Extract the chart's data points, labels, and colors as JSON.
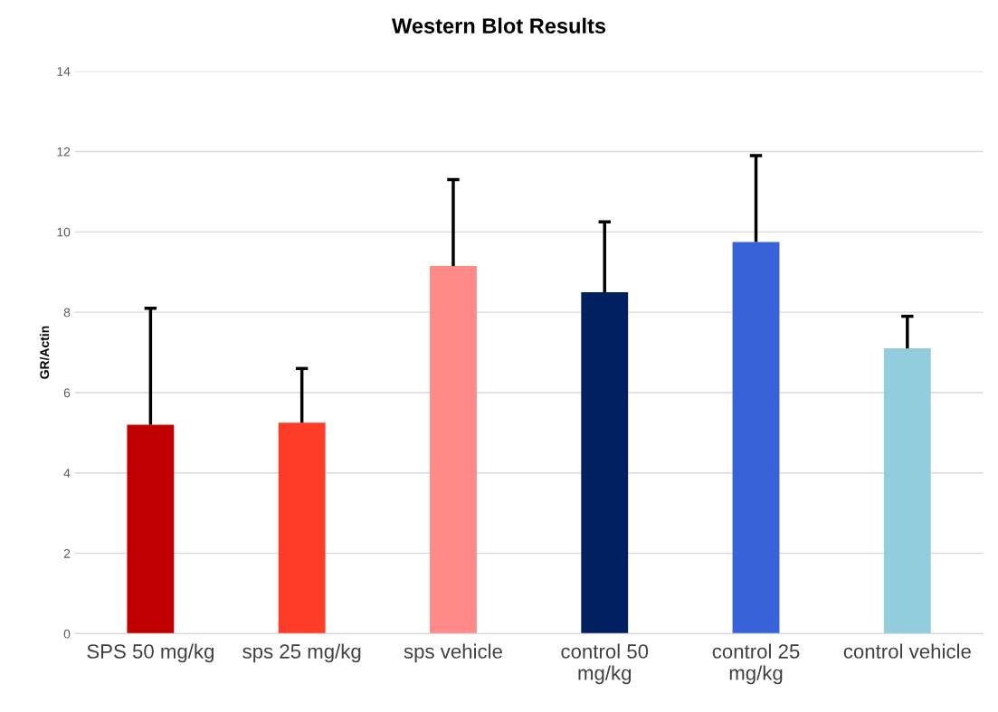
{
  "chart_data": {
    "type": "bar",
    "title": "Western Blot Results",
    "ylabel": "GR/Actin",
    "categories": [
      "SPS 50 mg/kg",
      "sps 25 mg/kg",
      "sps vehicle",
      "control 50\nmg/kg",
      "control 25\nmg/kg",
      "control vehicle"
    ],
    "values": [
      5.2,
      5.25,
      9.15,
      8.5,
      9.75,
      7.1
    ],
    "colors": [
      "#c00000",
      "#ff3c28",
      "#ff8a87",
      "#002060",
      "#3762d8",
      "#92cddd"
    ],
    "errors": [
      [
        5.2,
        8.1
      ],
      [
        5.25,
        6.6
      ],
      [
        9.15,
        11.3
      ],
      [
        8.5,
        10.25
      ],
      [
        9.75,
        11.9
      ],
      [
        7.1,
        7.9
      ]
    ],
    "ylim": [
      0,
      14
    ],
    "yticks": [
      0,
      2,
      4,
      6,
      8,
      10,
      12,
      14
    ],
    "grid": "y"
  }
}
